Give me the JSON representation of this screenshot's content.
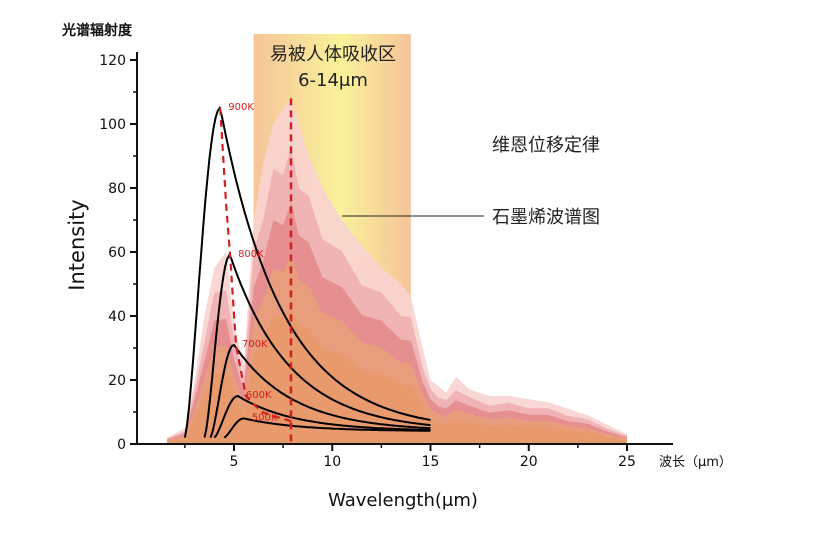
{
  "chart_data": {
    "type": "line",
    "y_caption": "光谱辐射度",
    "ylabel": "Intensity",
    "xlabel": "Wavelength(μm)",
    "x_unit_label": "波长（μm）",
    "xlim": [
      0,
      27
    ],
    "ylim": [
      0,
      120
    ],
    "x_ticks": [
      5,
      10,
      15,
      20,
      25
    ],
    "y_ticks": [
      0,
      20,
      40,
      60,
      80,
      100,
      120
    ],
    "band": {
      "label_line1": "易被人体吸收区",
      "label_line2": "6-14μm",
      "x_range": [
        6,
        14
      ],
      "colors": {
        "outer": "#f6c49a",
        "inner": "#f9f29a"
      }
    },
    "annotations": {
      "wien_law": "维恩位移定律",
      "graphene_spectrum": "石墨烯波谱图"
    },
    "series": [
      {
        "name": "900K",
        "peak_x": 4.3,
        "peak_y": 105,
        "x_start": 2.5,
        "x_end": 15,
        "end_y": 4
      },
      {
        "name": "800K",
        "peak_x": 4.8,
        "peak_y": 59,
        "x_start": 3.5,
        "x_end": 15,
        "end_y": 4
      },
      {
        "name": "700K",
        "peak_x": 5.0,
        "peak_y": 31,
        "x_start": 3.8,
        "x_end": 15,
        "end_y": 4
      },
      {
        "name": "600K",
        "peak_x": 5.2,
        "peak_y": 15,
        "x_start": 4.0,
        "x_end": 15,
        "end_y": 4
      },
      {
        "name": "500K",
        "peak_x": 5.5,
        "peak_y": 8,
        "x_start": 4.5,
        "x_end": 15,
        "end_y": 4
      }
    ],
    "wien_curve": {
      "x": [
        4.3,
        4.6,
        4.8,
        5.1,
        5.6,
        6.4,
        7.4,
        8.0
      ],
      "y": [
        105,
        75,
        59,
        31,
        15,
        10,
        8,
        7
      ]
    },
    "peak_marker_x": 7.9,
    "graphene_envelope": {
      "x": [
        1.6,
        2.5,
        3.0,
        3.5,
        4.0,
        4.6,
        5.0,
        5.5,
        6.0,
        6.5,
        7.0,
        7.5,
        7.9,
        8.3,
        8.8,
        9.5,
        10.5,
        11.5,
        12.5,
        13.5,
        14.0,
        14.6,
        15.0,
        15.4,
        15.8,
        16.3,
        17.0,
        18.0,
        19.0,
        20.0,
        21.0,
        22.0,
        23.0,
        24.0,
        25.0
      ],
      "y": [
        2,
        5,
        20,
        40,
        55,
        60,
        38,
        25,
        70,
        88,
        100,
        105,
        108,
        100,
        90,
        80,
        70,
        62,
        55,
        50,
        46,
        30,
        20,
        18,
        16,
        21,
        17,
        15,
        15,
        14,
        13,
        11,
        9,
        6,
        3
      ]
    },
    "colors": {
      "curve": "#000000",
      "wien": "#d21f1f",
      "series_label": "#d21f1f",
      "spectrum": [
        "#f8d3d0",
        "#efaeb0",
        "#e4888a",
        "#e7a07a",
        "#e89a6a"
      ]
    }
  }
}
